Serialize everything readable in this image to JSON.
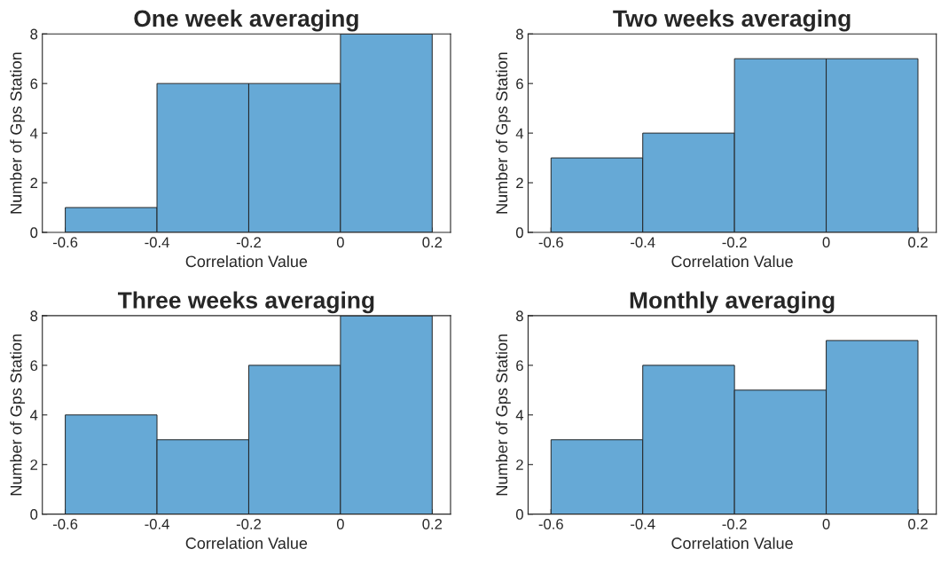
{
  "chart_data": [
    {
      "type": "histogram",
      "title": "One week averaging",
      "xlabel": "Correlation Value",
      "ylabel": "Number of Gps Station",
      "bins": [
        -0.6,
        -0.4,
        -0.2,
        0,
        0.2
      ],
      "values": [
        1,
        6,
        6,
        8
      ],
      "color": "#66a9d6",
      "xlim": [
        -0.65,
        0.24
      ],
      "ylim": [
        0,
        8
      ],
      "xticks": [
        -0.6,
        -0.4,
        -0.2,
        0,
        0.2
      ],
      "yticks": [
        0,
        2,
        4,
        6,
        8
      ]
    },
    {
      "type": "histogram",
      "title": "Two weeks averaging",
      "xlabel": "Correlation Value",
      "ylabel": "Number of Gps Station",
      "bins": [
        -0.6,
        -0.4,
        -0.2,
        0,
        0.2
      ],
      "values": [
        3,
        4,
        7,
        7
      ],
      "color": "#66a9d6",
      "xlim": [
        -0.65,
        0.24
      ],
      "ylim": [
        0,
        8
      ],
      "xticks": [
        -0.6,
        -0.4,
        -0.2,
        0,
        0.2
      ],
      "yticks": [
        0,
        2,
        4,
        6,
        8
      ]
    },
    {
      "type": "histogram",
      "title": "Three weeks averaging",
      "xlabel": "Correlation Value",
      "ylabel": "Number of Gps Station",
      "bins": [
        -0.6,
        -0.4,
        -0.2,
        0,
        0.2
      ],
      "values": [
        4,
        3,
        6,
        8
      ],
      "color": "#66a9d6",
      "xlim": [
        -0.65,
        0.24
      ],
      "ylim": [
        0,
        8
      ],
      "xticks": [
        -0.6,
        -0.4,
        -0.2,
        0,
        0.2
      ],
      "yticks": [
        0,
        2,
        4,
        6,
        8
      ]
    },
    {
      "type": "histogram",
      "title": "Monthly averaging",
      "xlabel": "Correlation Value",
      "ylabel": "Number of Gps Station",
      "bins": [
        -0.6,
        -0.4,
        -0.2,
        0,
        0.2
      ],
      "values": [
        3,
        6,
        5,
        7
      ],
      "color": "#66a9d6",
      "xlim": [
        -0.65,
        0.24
      ],
      "ylim": [
        0,
        8
      ],
      "xticks": [
        -0.6,
        -0.4,
        -0.2,
        0,
        0.2
      ],
      "yticks": [
        0,
        2,
        4,
        6,
        8
      ]
    }
  ]
}
